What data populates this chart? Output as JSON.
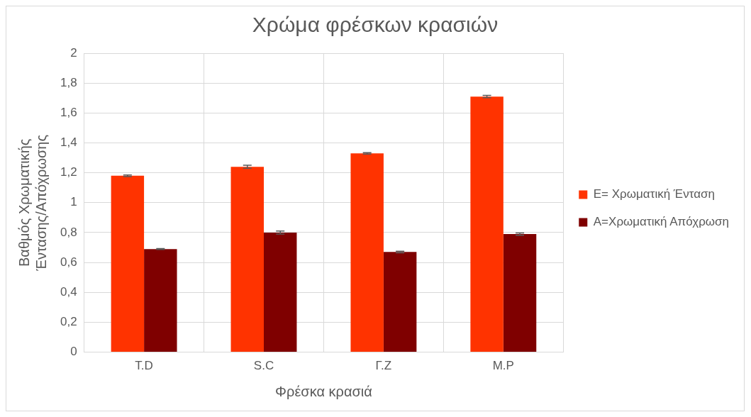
{
  "chart_data": {
    "type": "bar",
    "title": "Χρώμα φρέσκων κρασιών",
    "xlabel": "Φρέσκα κρασιά",
    "ylabel": "Βαθμός Χρωματικής Έντασης/Απόχρωσης",
    "categories": [
      "T.D",
      "S.C",
      "Γ.Z",
      "M.P"
    ],
    "series": [
      {
        "name": "E= Χρωματική Ένταση",
        "color": "#ff3300",
        "values": [
          1.18,
          1.24,
          1.33,
          1.71
        ],
        "errors": [
          0.005,
          0.01,
          0.005,
          0.008
        ]
      },
      {
        "name": "A=Χρωματική Απόχρωση",
        "color": "#7f0000",
        "values": [
          0.69,
          0.8,
          0.67,
          0.79
        ],
        "errors": [
          0.003,
          0.01,
          0.005,
          0.008
        ]
      }
    ],
    "ylim": [
      0,
      2
    ],
    "yticks": [
      0,
      {
        "value": 0.2,
        "label": "0,2"
      },
      {
        "value": 0.4,
        "label": "0,4"
      },
      {
        "value": 0.6,
        "label": "0,6"
      },
      {
        "value": 0.8,
        "label": "0,8"
      },
      1,
      {
        "value": 1.2,
        "label": "1,2"
      },
      {
        "value": 1.4,
        "label": "1,4"
      },
      {
        "value": 1.6,
        "label": "1,6"
      },
      {
        "value": 1.8,
        "label": "1,8"
      },
      2
    ],
    "grid": true,
    "legend": "right"
  }
}
